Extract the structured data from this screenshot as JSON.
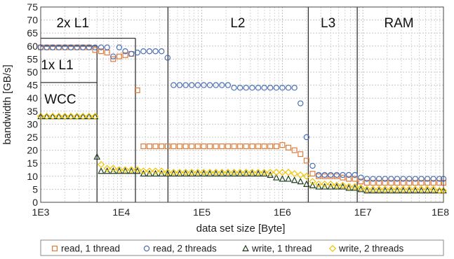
{
  "chart_data": {
    "type": "scatter",
    "title": "",
    "xlabel": "data set size [Byte]",
    "ylabel": "bandwidth [GB/s]",
    "xscale": "log",
    "xlim": [
      1000,
      100000000
    ],
    "ylim": [
      0,
      75
    ],
    "x_ticks": [
      "1E3",
      "1E4",
      "1E5",
      "1E6",
      "1E7",
      "1E8"
    ],
    "y_ticks": [
      "0",
      "5",
      "10",
      "15",
      "20",
      "25",
      "30",
      "35",
      "40",
      "45",
      "50",
      "55",
      "60",
      "65",
      "70",
      "75"
    ],
    "grid": true,
    "legend_position": "bottom",
    "regions": [
      {
        "label": "2x L1",
        "x_end": 15000,
        "y_top": 63
      },
      {
        "label": "1x L1",
        "x_end": 5000,
        "y_top": 60
      },
      {
        "label": "WCC",
        "x_end": 5000,
        "y_top": 46
      },
      {
        "label": "L2",
        "x_end": 38000
      },
      {
        "label": "L3",
        "x_end": 2100000
      },
      {
        "label": "RAM",
        "x_end": 8500000
      }
    ],
    "series": [
      {
        "name": "read, 1 thread",
        "marker": "square",
        "color": "#e07b39",
        "points": [
          [
            1000,
            59.5
          ],
          [
            1190,
            59.5
          ],
          [
            1410,
            59.5
          ],
          [
            1680,
            59.5
          ],
          [
            2000,
            59.5
          ],
          [
            2370,
            59.5
          ],
          [
            2820,
            59.5
          ],
          [
            3350,
            59.5
          ],
          [
            3980,
            59.5
          ],
          [
            4730,
            58.5
          ],
          [
            5620,
            58
          ],
          [
            6680,
            57.5
          ],
          [
            7940,
            55
          ],
          [
            9440,
            56
          ],
          [
            11220,
            56.5
          ],
          [
            13340,
            57
          ],
          [
            15850,
            43
          ],
          [
            18840,
            21.5
          ],
          [
            22390,
            21.5
          ],
          [
            26610,
            21.5
          ],
          [
            31620,
            21.5
          ],
          [
            37580,
            21.5
          ],
          [
            44670,
            21.5
          ],
          [
            53090,
            21.5
          ],
          [
            63100,
            21.5
          ],
          [
            74990,
            21.5
          ],
          [
            89130,
            21.5
          ],
          [
            105900,
            21.5
          ],
          [
            125900,
            21.5
          ],
          [
            149600,
            21.5
          ],
          [
            177800,
            21.5
          ],
          [
            211300,
            21.5
          ],
          [
            251200,
            21.5
          ],
          [
            298500,
            21.5
          ],
          [
            354800,
            21.5
          ],
          [
            421700,
            21.5
          ],
          [
            501200,
            21.5
          ],
          [
            595700,
            21.5
          ],
          [
            707900,
            21.5
          ],
          [
            841400,
            21.5
          ],
          [
            1000000,
            22
          ],
          [
            1189000,
            21
          ],
          [
            1413000,
            20
          ],
          [
            1679000,
            18.5
          ],
          [
            1995000,
            16
          ],
          [
            2371000,
            11
          ],
          [
            2818000,
            10
          ],
          [
            3350000,
            10
          ],
          [
            3981000,
            10
          ],
          [
            4732000,
            10
          ],
          [
            5623000,
            9.5
          ],
          [
            6683000,
            9
          ],
          [
            7943000,
            9
          ],
          [
            9441000,
            8
          ],
          [
            11220000,
            7.5
          ],
          [
            13340000,
            7.5
          ],
          [
            15850000,
            7.5
          ],
          [
            18840000,
            7.5
          ],
          [
            22390000,
            7.5
          ],
          [
            26610000,
            7.5
          ],
          [
            31620000,
            7.5
          ],
          [
            37580000,
            7.5
          ],
          [
            44670000,
            7.5
          ],
          [
            53090000,
            7.5
          ],
          [
            63100000,
            7.5
          ],
          [
            74990000,
            7.5
          ],
          [
            89130000,
            7.5
          ],
          [
            100000000,
            7.5
          ]
        ]
      },
      {
        "name": "read, 2 threads",
        "marker": "circle",
        "color": "#4a6fb5",
        "points": [
          [
            1000,
            59.5
          ],
          [
            1190,
            59.5
          ],
          [
            1410,
            59.5
          ],
          [
            1680,
            59.5
          ],
          [
            2000,
            59.5
          ],
          [
            2370,
            59.5
          ],
          [
            2820,
            59.5
          ],
          [
            3350,
            59.5
          ],
          [
            3980,
            59.5
          ],
          [
            4730,
            59.5
          ],
          [
            5620,
            59.5
          ],
          [
            6680,
            59.5
          ],
          [
            7940,
            56
          ],
          [
            9440,
            59.5
          ],
          [
            11220,
            58
          ],
          [
            13340,
            57
          ],
          [
            15850,
            57.5
          ],
          [
            18840,
            58
          ],
          [
            22390,
            58
          ],
          [
            26610,
            58
          ],
          [
            31620,
            58
          ],
          [
            37580,
            55.5
          ],
          [
            44670,
            45
          ],
          [
            53090,
            45
          ],
          [
            63100,
            45
          ],
          [
            74990,
            45
          ],
          [
            89130,
            45
          ],
          [
            105900,
            45
          ],
          [
            125900,
            45
          ],
          [
            149600,
            45
          ],
          [
            177800,
            45
          ],
          [
            211300,
            45
          ],
          [
            251200,
            44
          ],
          [
            298500,
            44
          ],
          [
            354800,
            44
          ],
          [
            421700,
            44
          ],
          [
            501200,
            44
          ],
          [
            595700,
            44
          ],
          [
            707900,
            44
          ],
          [
            841400,
            44
          ],
          [
            1000000,
            44
          ],
          [
            1189000,
            44
          ],
          [
            1413000,
            44
          ],
          [
            1679000,
            38
          ],
          [
            1995000,
            25
          ],
          [
            2371000,
            14
          ],
          [
            2818000,
            10.5
          ],
          [
            3350000,
            10.5
          ],
          [
            3981000,
            10.5
          ],
          [
            4732000,
            10.5
          ],
          [
            5623000,
            10.5
          ],
          [
            6683000,
            10.5
          ],
          [
            7943000,
            10.5
          ],
          [
            9441000,
            9.5
          ],
          [
            11220000,
            9
          ],
          [
            13340000,
            9
          ],
          [
            15850000,
            9
          ],
          [
            18840000,
            9
          ],
          [
            22390000,
            9
          ],
          [
            26610000,
            9
          ],
          [
            31620000,
            9
          ],
          [
            37580000,
            9
          ],
          [
            44670000,
            9
          ],
          [
            53090000,
            9
          ],
          [
            63100000,
            9
          ],
          [
            74990000,
            9
          ],
          [
            89130000,
            9
          ],
          [
            100000000,
            9
          ]
        ]
      },
      {
        "name": "write, 1 thread",
        "marker": "triangle",
        "color": "#1f3d1f",
        "points": [
          [
            1000,
            33
          ],
          [
            1190,
            33
          ],
          [
            1410,
            33
          ],
          [
            1680,
            33
          ],
          [
            2000,
            33
          ],
          [
            2370,
            33
          ],
          [
            2820,
            33
          ],
          [
            3350,
            33
          ],
          [
            3980,
            33
          ],
          [
            4730,
            33
          ],
          [
            5000,
            17.5
          ],
          [
            5620,
            12
          ],
          [
            6680,
            12
          ],
          [
            7940,
            12
          ],
          [
            9440,
            12
          ],
          [
            11220,
            12
          ],
          [
            13340,
            12
          ],
          [
            15850,
            12
          ],
          [
            18840,
            11
          ],
          [
            22390,
            11
          ],
          [
            26610,
            11
          ],
          [
            31620,
            11
          ],
          [
            37580,
            11
          ],
          [
            44670,
            11
          ],
          [
            53090,
            11
          ],
          [
            63100,
            11
          ],
          [
            74990,
            11
          ],
          [
            89130,
            11
          ],
          [
            105900,
            11
          ],
          [
            125900,
            11
          ],
          [
            149600,
            11
          ],
          [
            177800,
            11
          ],
          [
            211300,
            11
          ],
          [
            251200,
            11
          ],
          [
            298500,
            11
          ],
          [
            354800,
            11
          ],
          [
            421700,
            11
          ],
          [
            501200,
            11
          ],
          [
            595700,
            11
          ],
          [
            707900,
            10.5
          ],
          [
            841400,
            9.5
          ],
          [
            1000000,
            9
          ],
          [
            1189000,
            9
          ],
          [
            1413000,
            8.5
          ],
          [
            1679000,
            8
          ],
          [
            1995000,
            7
          ],
          [
            2371000,
            6.5
          ],
          [
            2818000,
            6
          ],
          [
            3350000,
            6
          ],
          [
            3981000,
            6
          ],
          [
            4732000,
            6
          ],
          [
            5623000,
            6
          ],
          [
            6683000,
            5.5
          ],
          [
            7943000,
            5.5
          ],
          [
            9441000,
            5
          ],
          [
            11220000,
            4.5
          ],
          [
            13340000,
            4.5
          ],
          [
            15850000,
            4.5
          ],
          [
            18840000,
            4.5
          ],
          [
            22390000,
            4.5
          ],
          [
            26610000,
            4.5
          ],
          [
            31620000,
            4.5
          ],
          [
            37580000,
            4.5
          ],
          [
            44670000,
            4.5
          ],
          [
            53090000,
            4.5
          ],
          [
            63100000,
            4.5
          ],
          [
            74990000,
            4.5
          ],
          [
            89130000,
            4.5
          ],
          [
            100000000,
            4.5
          ]
        ]
      },
      {
        "name": "write, 2 threads",
        "marker": "diamond",
        "color": "#f2c300",
        "points": [
          [
            1000,
            33
          ],
          [
            1190,
            33
          ],
          [
            1410,
            33
          ],
          [
            1680,
            33
          ],
          [
            2000,
            33
          ],
          [
            2370,
            33
          ],
          [
            2820,
            33
          ],
          [
            3350,
            33
          ],
          [
            3980,
            33
          ],
          [
            4730,
            33
          ],
          [
            5620,
            14.5
          ],
          [
            6680,
            13
          ],
          [
            7940,
            13
          ],
          [
            9440,
            12.5
          ],
          [
            11220,
            12.5
          ],
          [
            13340,
            12.5
          ],
          [
            15850,
            12.5
          ],
          [
            18840,
            12
          ],
          [
            22390,
            12
          ],
          [
            26610,
            12
          ],
          [
            31620,
            12
          ],
          [
            37580,
            11.5
          ],
          [
            44670,
            11.5
          ],
          [
            53090,
            11.5
          ],
          [
            63100,
            11.5
          ],
          [
            74990,
            11.5
          ],
          [
            89130,
            11.5
          ],
          [
            105900,
            11.5
          ],
          [
            125900,
            11.5
          ],
          [
            149600,
            11.5
          ],
          [
            177800,
            11.5
          ],
          [
            211300,
            11.5
          ],
          [
            251200,
            11.5
          ],
          [
            298500,
            11.5
          ],
          [
            354800,
            11.5
          ],
          [
            421700,
            11.5
          ],
          [
            501200,
            11.5
          ],
          [
            595700,
            11.5
          ],
          [
            707900,
            11.5
          ],
          [
            841400,
            11.5
          ],
          [
            1000000,
            11.5
          ],
          [
            1189000,
            11.5
          ],
          [
            1413000,
            11
          ],
          [
            1679000,
            10.5
          ],
          [
            1995000,
            10
          ],
          [
            2371000,
            8
          ],
          [
            2818000,
            7
          ],
          [
            3350000,
            7
          ],
          [
            3981000,
            7
          ],
          [
            4732000,
            6.5
          ],
          [
            5623000,
            6.5
          ],
          [
            6683000,
            6
          ],
          [
            7943000,
            6
          ],
          [
            9441000,
            5.5
          ],
          [
            11220000,
            5
          ],
          [
            13340000,
            5
          ],
          [
            15850000,
            5
          ],
          [
            18840000,
            5
          ],
          [
            22390000,
            5
          ],
          [
            26610000,
            5
          ],
          [
            31620000,
            5
          ],
          [
            37580000,
            5
          ],
          [
            44670000,
            5
          ],
          [
            53090000,
            5
          ],
          [
            63100000,
            5
          ],
          [
            74990000,
            5
          ],
          [
            89130000,
            4.5
          ],
          [
            100000000,
            4.5
          ]
        ]
      }
    ]
  }
}
